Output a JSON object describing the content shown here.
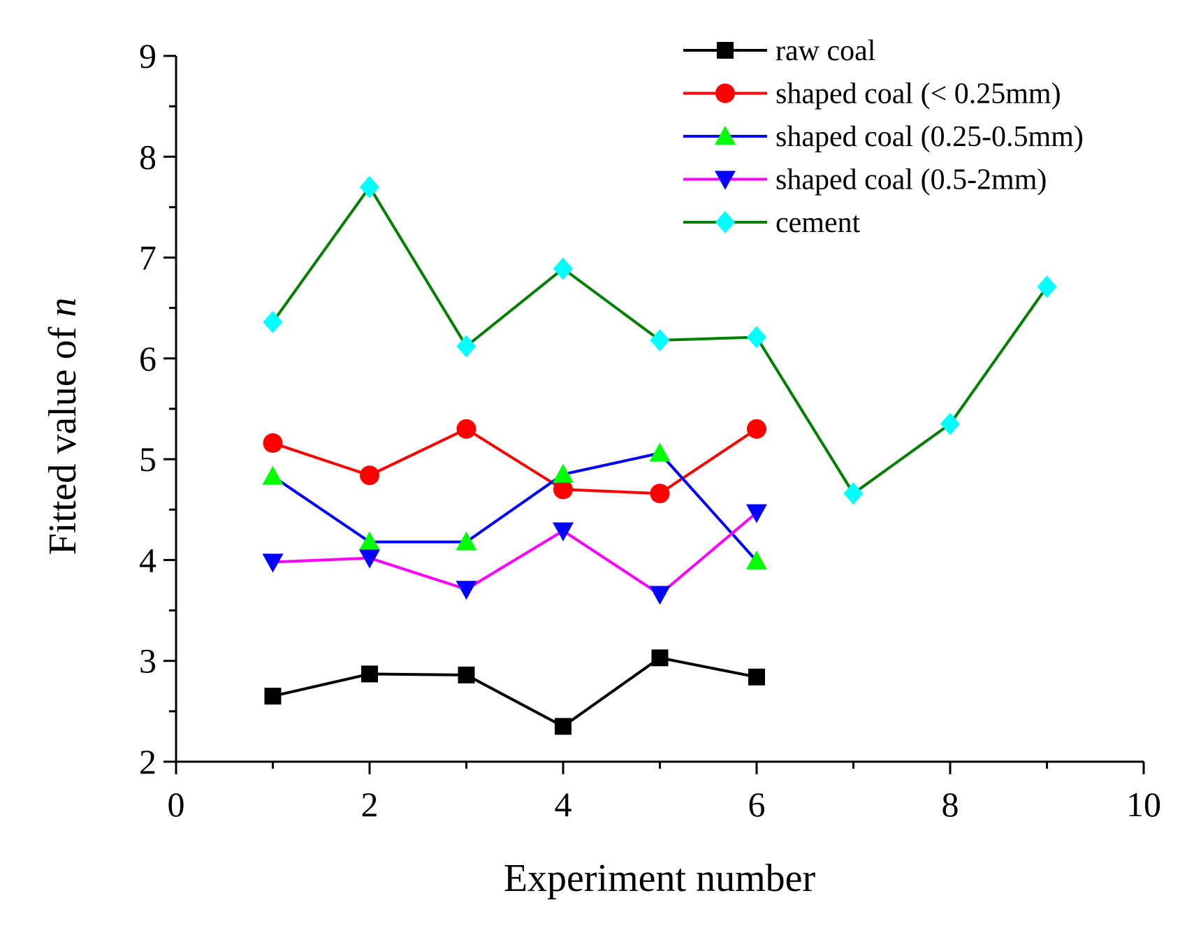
{
  "chart_data": {
    "type": "line",
    "title": "",
    "xlabel": "Experiment number",
    "ylabel": "Fitted value of ",
    "ylabel_italic": "n",
    "xlim": [
      0,
      10
    ],
    "ylim": [
      2,
      9
    ],
    "xticks": [
      0,
      2,
      4,
      6,
      8,
      10
    ],
    "yticks": [
      2,
      3,
      4,
      5,
      6,
      7,
      8,
      9
    ],
    "grid": false,
    "legend_position": "top-right",
    "series": [
      {
        "name": "raw coal",
        "color": "#000000",
        "marker": "square",
        "x": [
          1,
          2,
          3,
          4,
          5,
          6
        ],
        "y": [
          2.65,
          2.87,
          2.86,
          2.35,
          3.03,
          2.84
        ]
      },
      {
        "name": "shaped coal (< 0.25mm)",
        "color": "#ff0000",
        "marker": "circle",
        "x": [
          1,
          2,
          3,
          4,
          5,
          6
        ],
        "y": [
          5.16,
          4.84,
          5.3,
          4.7,
          4.66,
          5.3
        ]
      },
      {
        "name": "shaped coal (0.25-0.5mm)",
        "color": "#0000ff",
        "marker_color": "#00ff00",
        "marker": "triangle-up",
        "x": [
          1,
          2,
          3,
          4,
          5,
          6
        ],
        "y": [
          4.83,
          4.18,
          4.18,
          4.85,
          5.06,
          3.99
        ]
      },
      {
        "name": "shaped coal (0.5-2mm)",
        "color": "#ff00ff",
        "marker_color": "#0000ff",
        "marker": "triangle-down",
        "x": [
          1,
          2,
          3,
          4,
          5,
          6
        ],
        "y": [
          3.98,
          4.02,
          3.71,
          4.29,
          3.66,
          4.47
        ]
      },
      {
        "name": "cement",
        "color": "#008000",
        "marker_color": "#00ffff",
        "marker": "diamond",
        "x": [
          1,
          2,
          3,
          4,
          5,
          6,
          7,
          8,
          9
        ],
        "y": [
          6.36,
          7.7,
          6.12,
          6.89,
          6.18,
          6.21,
          4.66,
          5.35,
          6.71
        ]
      }
    ]
  }
}
